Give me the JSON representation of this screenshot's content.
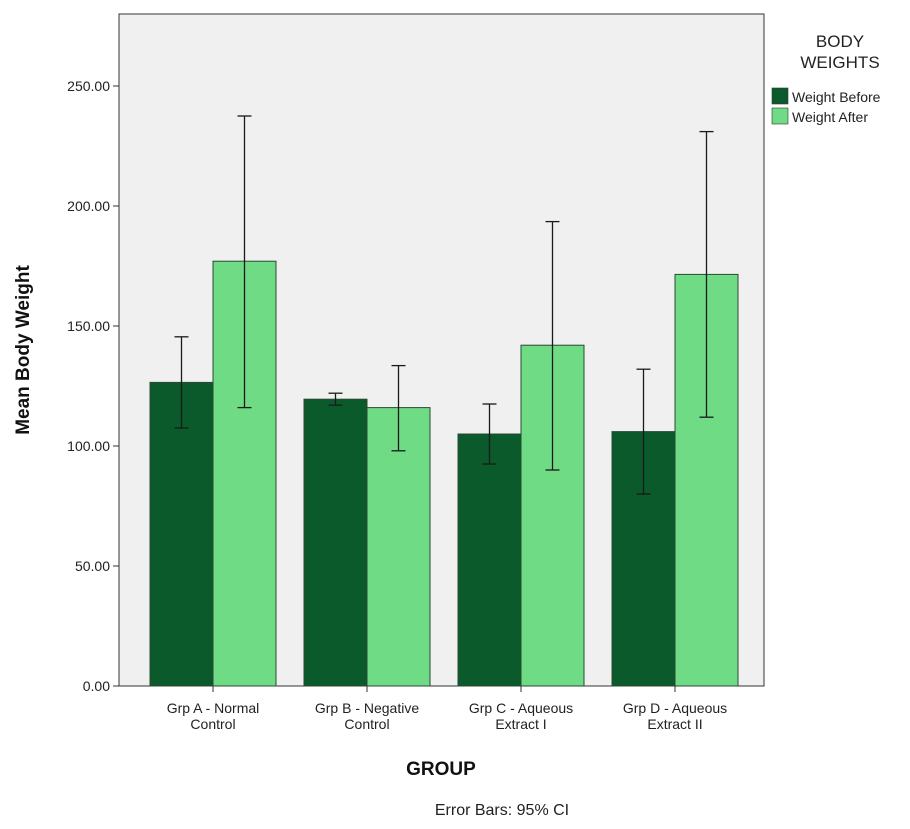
{
  "chart_data": {
    "type": "bar",
    "title": "",
    "xlabel": "GROUP",
    "ylabel": "Mean Body Weight",
    "ylim": [
      0,
      275
    ],
    "yticks": [
      0,
      50,
      100,
      150,
      200,
      250
    ],
    "ytick_labels": [
      "0.00",
      "50.00",
      "100.00",
      "150.00",
      "200.00",
      "250.00"
    ],
    "categories": [
      [
        "Grp A - Normal",
        "Control"
      ],
      [
        "Grp B - Negative",
        "Control"
      ],
      [
        "Grp C - Aqueous",
        "Extract I"
      ],
      [
        "Grp D - Aqueous",
        "Extract II"
      ]
    ],
    "legend": {
      "title": [
        "BODY",
        "WEIGHTS"
      ],
      "placement": "right"
    },
    "series": [
      {
        "name": "Weight Before",
        "color": "#0b5a2c",
        "values": [
          126.5,
          119.5,
          105,
          106
        ],
        "ci_low": [
          107.5,
          117,
          92.5,
          80
        ],
        "ci_high": [
          145.5,
          122,
          117.5,
          132
        ]
      },
      {
        "name": "Weight After",
        "color": "#6fdb85",
        "values": [
          177,
          116,
          142,
          171.5
        ],
        "ci_low": [
          116,
          98,
          90,
          112
        ],
        "ci_high": [
          237.5,
          133.5,
          193.5,
          231
        ]
      }
    ],
    "plot_background": "#f0f0f0",
    "grid": false,
    "footnote": "Error Bars: 95% CI"
  }
}
